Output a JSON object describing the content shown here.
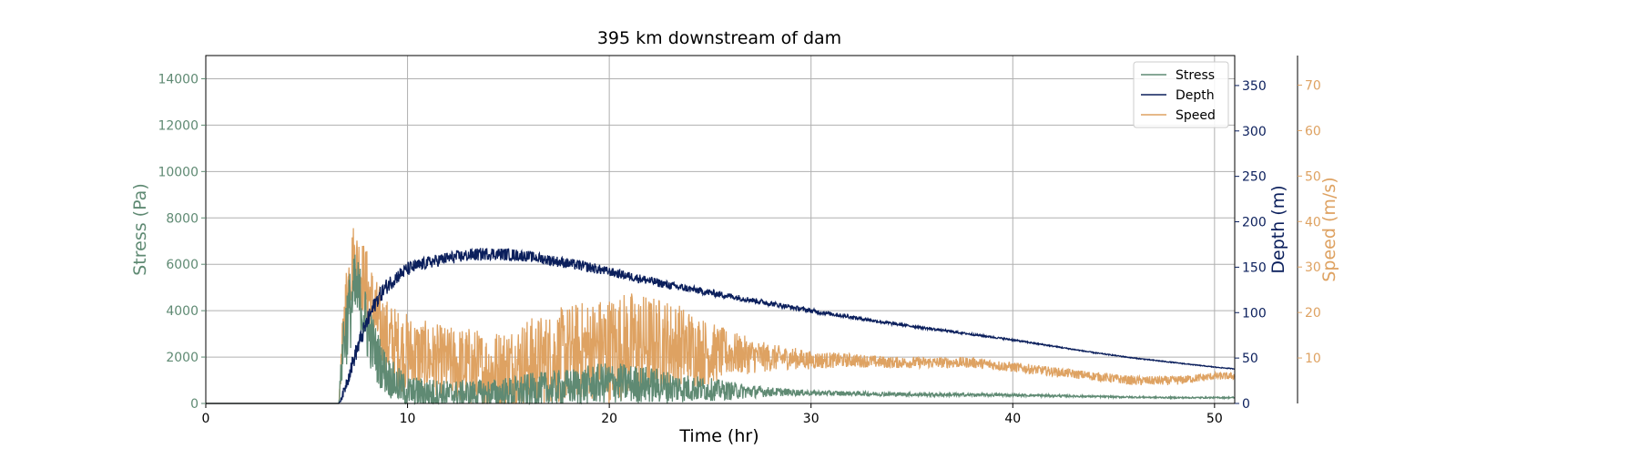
{
  "chart_data": {
    "type": "line",
    "title": "395 km downstream of dam",
    "xlabel": "Time (hr)",
    "xlim": [
      0,
      51
    ],
    "x_ticks": [
      0,
      10,
      20,
      30,
      40,
      50
    ],
    "grid": true,
    "legend_position": "top-right",
    "colors": {
      "stress": "#5f8a73",
      "depth": "#0b1f5c",
      "speed": "#dea262"
    },
    "axes": {
      "stress": {
        "label": "Stress (Pa)",
        "ylim": [
          0,
          15000
        ],
        "ticks": [
          0,
          2000,
          4000,
          6000,
          8000,
          10000,
          12000,
          14000
        ],
        "side": "left"
      },
      "depth": {
        "label": "Depth (m)",
        "ylim": [
          0,
          383
        ],
        "ticks": [
          0,
          50,
          100,
          150,
          200,
          250,
          300,
          350
        ],
        "side": "right"
      },
      "speed": {
        "label": "Speed (m/s)",
        "ylim": [
          0,
          76.5
        ],
        "ticks": [
          10,
          20,
          30,
          40,
          50,
          60,
          70
        ],
        "side": "right-outer"
      }
    },
    "series": [
      {
        "name": "Stress",
        "axis": "stress",
        "x": [
          0,
          6.6,
          6.8,
          7.0,
          7.2,
          7.4,
          7.6,
          7.8,
          8.0,
          8.5,
          9.0,
          9.5,
          10,
          11,
          12,
          13,
          14,
          15,
          16,
          17,
          18,
          19,
          20,
          21,
          22,
          23,
          24,
          25,
          26,
          27,
          28,
          29,
          30,
          32,
          34,
          36,
          38,
          40,
          42,
          44,
          46,
          48,
          50,
          51
        ],
        "values": [
          0,
          0,
          2500,
          3500,
          4200,
          4800,
          4600,
          4000,
          3200,
          2000,
          1200,
          800,
          500,
          450,
          400,
          420,
          400,
          450,
          550,
          600,
          700,
          800,
          900,
          850,
          800,
          700,
          650,
          600,
          550,
          520,
          500,
          480,
          450,
          430,
          400,
          380,
          370,
          360,
          330,
          300,
          270,
          250,
          250,
          250
        ],
        "noise": [
          0,
          0,
          1500,
          1800,
          1800,
          1700,
          1600,
          1500,
          1400,
          1200,
          900,
          800,
          700,
          650,
          600,
          600,
          650,
          700,
          750,
          800,
          800,
          850,
          900,
          850,
          800,
          700,
          600,
          500,
          400,
          300,
          200,
          150,
          120,
          100,
          90,
          80,
          70,
          60,
          50,
          40,
          35,
          30,
          30,
          30
        ]
      },
      {
        "name": "Depth",
        "axis": "depth",
        "x": [
          0,
          6.6,
          6.8,
          7.0,
          7.5,
          8.0,
          8.5,
          9.0,
          9.5,
          10,
          11,
          12,
          13,
          14,
          15,
          16,
          17,
          18,
          19,
          20,
          21,
          22,
          23,
          24,
          25,
          26,
          27,
          28,
          29,
          30,
          32,
          34,
          36,
          38,
          40,
          42,
          44,
          46,
          48,
          50,
          51
        ],
        "values": [
          0,
          0,
          10,
          25,
          60,
          90,
          115,
          130,
          140,
          148,
          155,
          160,
          163,
          165,
          164,
          162,
          158,
          154,
          150,
          145,
          140,
          135,
          130,
          126,
          122,
          118,
          114,
          110,
          106,
          102,
          95,
          88,
          82,
          76,
          70,
          63,
          56,
          50,
          45,
          40,
          38
        ],
        "noise": [
          0,
          0,
          5,
          8,
          10,
          10,
          9,
          9,
          8,
          8,
          7,
          7,
          7,
          7,
          7,
          6,
          6,
          6,
          6,
          5,
          5,
          5,
          4.5,
          4,
          4,
          3.5,
          3,
          3,
          2.5,
          2.5,
          2,
          1.6,
          1.3,
          1.1,
          0.9,
          0.7,
          0.6,
          0.5,
          0.5,
          0.4,
          0.4
        ]
      },
      {
        "name": "Speed",
        "axis": "speed",
        "x": [
          0,
          6.6,
          6.8,
          7.0,
          7.3,
          7.6,
          8.0,
          8.5,
          9.0,
          9.5,
          10,
          11,
          12,
          13,
          14,
          15,
          16,
          17,
          18,
          19,
          20,
          21,
          22,
          23,
          24,
          25,
          26,
          27,
          28,
          29,
          30,
          32,
          34,
          36,
          38,
          40,
          42,
          44,
          46,
          48,
          50,
          51
        ],
        "values": [
          0,
          0,
          15,
          25,
          32,
          30,
          25,
          18,
          14,
          12,
          11,
          10,
          9,
          8,
          7,
          8,
          9,
          10,
          11,
          12,
          12,
          13,
          13,
          13,
          12,
          11,
          11,
          10.5,
          10,
          10,
          9.5,
          9.5,
          9,
          9,
          9,
          8,
          7,
          6,
          5,
          5,
          6,
          6
        ],
        "noise": [
          0,
          0,
          6,
          8,
          8,
          8,
          9,
          9,
          9,
          9,
          9,
          8,
          8,
          9,
          9,
          9,
          10,
          10,
          11,
          11,
          12,
          12,
          11,
          10,
          9,
          7,
          5,
          4,
          3,
          2.5,
          2,
          1.5,
          1.3,
          1.2,
          1.2,
          1.1,
          1,
          1,
          1,
          1,
          0.8,
          0.8
        ]
      }
    ]
  }
}
